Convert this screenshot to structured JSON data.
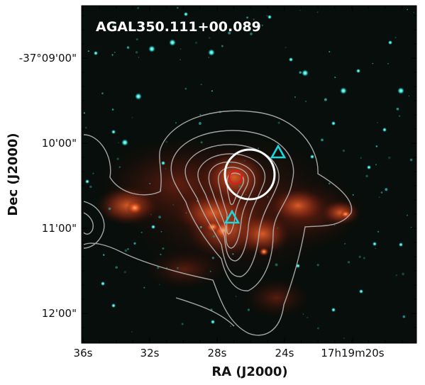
{
  "figure": {
    "source_name": "AGAL350.111+00.089",
    "x_axis_label": "RA (J2000)",
    "y_axis_label": "Dec (J2000)",
    "x_tick_labels": [
      "36s",
      "32s",
      "28s",
      "24s",
      "17h19m20s"
    ],
    "y_tick_labels": [
      "-37°09'00\"",
      "10'00\"",
      "11'00\"",
      "12'00\""
    ],
    "colors": {
      "background_sky": "#050807",
      "nebula_emission": "#c8441c",
      "contours": "#b5b5b5",
      "circle_beam": "#ffffff",
      "red_circle": "#e01a1a",
      "triangle_markers": "#19d8e0",
      "stars": "#3ff0ea"
    },
    "overlays": {
      "white_circle": "beam circle",
      "red_circle": "peak marker",
      "triangles": 2
    }
  }
}
